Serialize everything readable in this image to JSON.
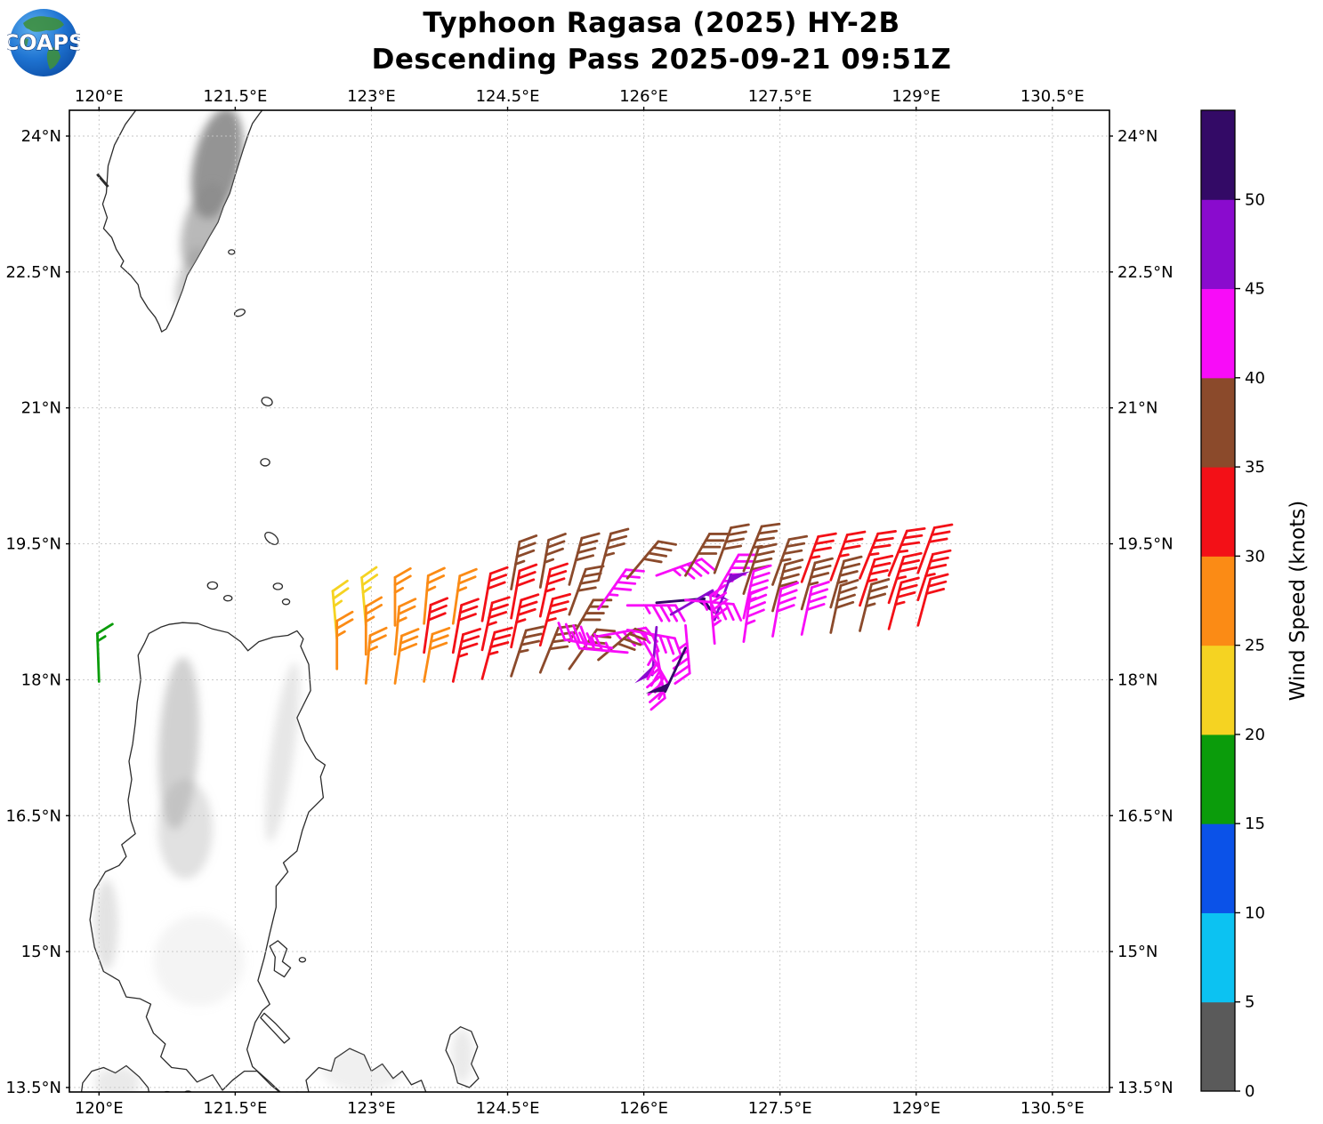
{
  "header": {
    "title_line1": "Typhoon Ragasa (2025) HY-2B",
    "title_line2": "Descending Pass 2025-09-21 09:51Z",
    "logo_text": "COAPS"
  },
  "chart_data": {
    "type": "wind_barb_map",
    "projection": {
      "lon_min": 119.67,
      "lon_max": 131.13,
      "lat_min": 13.45,
      "lat_max": 24.29
    },
    "grid": {
      "on": true,
      "style": "dashed",
      "color": "#c4c4c4"
    },
    "x_ticks": [
      {
        "value": 120.0,
        "label": "120°E"
      },
      {
        "value": 121.5,
        "label": "121.5°E"
      },
      {
        "value": 123.0,
        "label": "123°E"
      },
      {
        "value": 124.5,
        "label": "124.5°E"
      },
      {
        "value": 126.0,
        "label": "126°E"
      },
      {
        "value": 127.5,
        "label": "127.5°E"
      },
      {
        "value": 129.0,
        "label": "129°E"
      },
      {
        "value": 130.5,
        "label": "130.5°E"
      }
    ],
    "y_ticks": [
      {
        "value": 24.0,
        "label": "24°N"
      },
      {
        "value": 22.5,
        "label": "22.5°N"
      },
      {
        "value": 21.0,
        "label": "21°N"
      },
      {
        "value": 19.5,
        "label": "19.5°N"
      },
      {
        "value": 18.0,
        "label": "18°N"
      },
      {
        "value": 16.5,
        "label": "16.5°N"
      },
      {
        "value": 15.0,
        "label": "15°N"
      },
      {
        "value": 13.5,
        "label": "13.5°N"
      }
    ],
    "colorbar": {
      "label": "Wind Speed (knots)",
      "tick_values": [
        0,
        5,
        10,
        15,
        20,
        25,
        30,
        35,
        40,
        45,
        50
      ],
      "bands": [
        {
          "range": [
            0,
            5
          ],
          "color": "#5a5a5a"
        },
        {
          "range": [
            5,
            10
          ],
          "color": "#0cc2f2"
        },
        {
          "range": [
            10,
            15
          ],
          "color": "#0b52e8"
        },
        {
          "range": [
            15,
            20
          ],
          "color": "#0b9c0b"
        },
        {
          "range": [
            20,
            25
          ],
          "color": "#f5d322"
        },
        {
          "range": [
            25,
            30
          ],
          "color": "#fb8b15"
        },
        {
          "range": [
            30,
            35
          ],
          "color": "#f31017"
        },
        {
          "range": [
            35,
            40
          ],
          "color": "#8b4a2b"
        },
        {
          "range": [
            40,
            45
          ],
          "color": "#f80cf8"
        },
        {
          "range": [
            45,
            50
          ],
          "color": "#8a0bce"
        },
        {
          "range": [
            50,
            55
          ],
          "color": "#330a66"
        }
      ]
    },
    "barbs": [
      {
        "lon": 120.0,
        "lat": 17.98,
        "speed": 15,
        "dir": 358,
        "color": "#0b9c0b"
      },
      {
        "lon": 122.62,
        "lat": 18.45,
        "speed": 25,
        "dir": 355,
        "color": "#f5d322"
      },
      {
        "lon": 122.62,
        "lat": 18.12,
        "speed": 25,
        "dir": 0,
        "color": "#fb8b15"
      },
      {
        "lon": 122.94,
        "lat": 18.6,
        "speed": 25,
        "dir": 355,
        "color": "#f5d322"
      },
      {
        "lon": 122.94,
        "lat": 18.28,
        "speed": 25,
        "dir": 0,
        "color": "#fb8b15"
      },
      {
        "lon": 122.94,
        "lat": 17.96,
        "speed": 25,
        "dir": 5,
        "color": "#fb8b15"
      },
      {
        "lon": 123.26,
        "lat": 18.6,
        "speed": 25,
        "dir": 0,
        "color": "#fb8b15"
      },
      {
        "lon": 123.26,
        "lat": 18.28,
        "speed": 25,
        "dir": 5,
        "color": "#fb8b15"
      },
      {
        "lon": 123.26,
        "lat": 17.96,
        "speed": 30,
        "dir": 8,
        "color": "#fb8b15"
      },
      {
        "lon": 123.58,
        "lat": 18.62,
        "speed": 25,
        "dir": 5,
        "color": "#fb8b15"
      },
      {
        "lon": 123.58,
        "lat": 18.3,
        "speed": 30,
        "dir": 8,
        "color": "#f31017"
      },
      {
        "lon": 123.58,
        "lat": 17.98,
        "speed": 30,
        "dir": 10,
        "color": "#fb8b15"
      },
      {
        "lon": 123.9,
        "lat": 18.62,
        "speed": 25,
        "dir": 8,
        "color": "#fb8b15"
      },
      {
        "lon": 123.9,
        "lat": 18.3,
        "speed": 30,
        "dir": 10,
        "color": "#f31017"
      },
      {
        "lon": 123.9,
        "lat": 17.98,
        "speed": 35,
        "dir": 12,
        "color": "#f31017"
      },
      {
        "lon": 124.22,
        "lat": 18.65,
        "speed": 30,
        "dir": 10,
        "color": "#f31017"
      },
      {
        "lon": 124.22,
        "lat": 18.33,
        "speed": 35,
        "dir": 12,
        "color": "#f31017"
      },
      {
        "lon": 124.22,
        "lat": 18.01,
        "speed": 35,
        "dir": 15,
        "color": "#f31017"
      },
      {
        "lon": 124.54,
        "lat": 19.0,
        "speed": 35,
        "dir": 10,
        "color": "#8b4a2b"
      },
      {
        "lon": 124.54,
        "lat": 18.68,
        "speed": 30,
        "dir": 10,
        "color": "#f31017"
      },
      {
        "lon": 124.54,
        "lat": 18.36,
        "speed": 35,
        "dir": 12,
        "color": "#f31017"
      },
      {
        "lon": 124.54,
        "lat": 18.04,
        "speed": 35,
        "dir": 18,
        "color": "#8b4a2b"
      },
      {
        "lon": 124.86,
        "lat": 19.02,
        "speed": 35,
        "dir": 10,
        "color": "#8b4a2b"
      },
      {
        "lon": 124.86,
        "lat": 18.7,
        "speed": 35,
        "dir": 12,
        "color": "#f31017"
      },
      {
        "lon": 124.86,
        "lat": 18.38,
        "speed": 35,
        "dir": 15,
        "color": "#f31017"
      },
      {
        "lon": 124.86,
        "lat": 18.08,
        "speed": 40,
        "dir": 22,
        "color": "#8b4a2b"
      },
      {
        "lon": 125.18,
        "lat": 19.05,
        "speed": 40,
        "dir": 15,
        "color": "#8b4a2b"
      },
      {
        "lon": 125.18,
        "lat": 18.72,
        "speed": 40,
        "dir": 20,
        "color": "#8b4a2b"
      },
      {
        "lon": 125.18,
        "lat": 18.42,
        "speed": 40,
        "dir": 30,
        "color": "#8b4a2b"
      },
      {
        "lon": 125.18,
        "lat": 18.12,
        "speed": 40,
        "dir": 35,
        "color": "#8b4a2b"
      },
      {
        "lon": 125.5,
        "lat": 19.1,
        "speed": 35,
        "dir": 15,
        "color": "#8b4a2b"
      },
      {
        "lon": 125.5,
        "lat": 18.78,
        "speed": 45,
        "dir": 35,
        "color": "#f80cf8"
      },
      {
        "lon": 125.5,
        "lat": 18.48,
        "speed": 45,
        "dir": 80,
        "color": "#f80cf8"
      },
      {
        "lon": 125.5,
        "lat": 18.22,
        "speed": 40,
        "dir": 50,
        "color": "#8b4a2b"
      },
      {
        "lon": 125.82,
        "lat": 19.12,
        "speed": 40,
        "dir": 40,
        "color": "#8b4a2b"
      },
      {
        "lon": 125.82,
        "lat": 18.82,
        "speed": 45,
        "dir": 90,
        "color": "#f80cf8"
      },
      {
        "lon": 125.82,
        "lat": 18.55,
        "speed": 45,
        "dir": 100,
        "color": "#f80cf8"
      },
      {
        "lon": 125.82,
        "lat": 18.3,
        "speed": 45,
        "dir": 275,
        "color": "#f80cf8"
      },
      {
        "lon": 125.65,
        "lat": 18.35,
        "speed": 45,
        "dir": 280,
        "color": "#f80cf8"
      },
      {
        "lon": 126.14,
        "lat": 19.15,
        "speed": 45,
        "dir": 70,
        "color": "#f80cf8"
      },
      {
        "lon": 126.14,
        "lat": 18.85,
        "speed": 50,
        "dir": 85,
        "color": "#330a66"
      },
      {
        "lon": 126.14,
        "lat": 18.58,
        "speed": 50,
        "dir": 185,
        "color": "#8a0bce"
      },
      {
        "lon": 126.14,
        "lat": 18.32,
        "speed": 45,
        "dir": 170,
        "color": "#f80cf8"
      },
      {
        "lon": 126.0,
        "lat": 18.42,
        "speed": 45,
        "dir": 150,
        "color": "#f80cf8"
      },
      {
        "lon": 126.3,
        "lat": 18.72,
        "speed": 50,
        "dir": 60,
        "color": "#8a0bce"
      },
      {
        "lon": 126.46,
        "lat": 19.15,
        "speed": 40,
        "dir": 30,
        "color": "#8b4a2b"
      },
      {
        "lon": 126.46,
        "lat": 18.88,
        "speed": 45,
        "dir": 95,
        "color": "#f80cf8"
      },
      {
        "lon": 126.46,
        "lat": 18.6,
        "speed": 45,
        "dir": 175,
        "color": "#f80cf8"
      },
      {
        "lon": 126.46,
        "lat": 18.35,
        "speed": 50,
        "dir": 205,
        "color": "#330a66"
      },
      {
        "lon": 126.78,
        "lat": 19.18,
        "speed": 40,
        "dir": 20,
        "color": "#8b4a2b"
      },
      {
        "lon": 126.78,
        "lat": 18.92,
        "speed": 45,
        "dir": 30,
        "color": "#f80cf8"
      },
      {
        "lon": 126.78,
        "lat": 18.66,
        "speed": 50,
        "dir": 20,
        "color": "#8a0bce"
      },
      {
        "lon": 126.78,
        "lat": 18.4,
        "speed": 45,
        "dir": 355,
        "color": "#f80cf8"
      },
      {
        "lon": 127.1,
        "lat": 19.2,
        "speed": 35,
        "dir": 22,
        "color": "#8b4a2b"
      },
      {
        "lon": 127.1,
        "lat": 18.95,
        "speed": 40,
        "dir": 18,
        "color": "#8b4a2b"
      },
      {
        "lon": 127.1,
        "lat": 18.68,
        "speed": 45,
        "dir": 12,
        "color": "#f80cf8"
      },
      {
        "lon": 127.1,
        "lat": 18.42,
        "speed": 45,
        "dir": 8,
        "color": "#f80cf8"
      },
      {
        "lon": 127.42,
        "lat": 19.05,
        "speed": 35,
        "dir": 20,
        "color": "#8b4a2b"
      },
      {
        "lon": 127.42,
        "lat": 18.76,
        "speed": 40,
        "dir": 15,
        "color": "#8b4a2b"
      },
      {
        "lon": 127.42,
        "lat": 18.48,
        "speed": 40,
        "dir": 10,
        "color": "#f80cf8"
      },
      {
        "lon": 127.74,
        "lat": 19.08,
        "speed": 35,
        "dir": 20,
        "color": "#f31017"
      },
      {
        "lon": 127.74,
        "lat": 18.78,
        "speed": 35,
        "dir": 16,
        "color": "#8b4a2b"
      },
      {
        "lon": 127.74,
        "lat": 18.5,
        "speed": 40,
        "dir": 12,
        "color": "#f80cf8"
      },
      {
        "lon": 128.06,
        "lat": 19.1,
        "speed": 35,
        "dir": 20,
        "color": "#f31017"
      },
      {
        "lon": 128.06,
        "lat": 18.8,
        "speed": 35,
        "dir": 16,
        "color": "#8b4a2b"
      },
      {
        "lon": 128.06,
        "lat": 18.52,
        "speed": 40,
        "dir": 12,
        "color": "#8b4a2b"
      },
      {
        "lon": 128.38,
        "lat": 19.12,
        "speed": 35,
        "dir": 22,
        "color": "#f31017"
      },
      {
        "lon": 128.38,
        "lat": 18.82,
        "speed": 35,
        "dir": 18,
        "color": "#f31017"
      },
      {
        "lon": 128.38,
        "lat": 18.54,
        "speed": 35,
        "dir": 14,
        "color": "#8b4a2b"
      },
      {
        "lon": 128.7,
        "lat": 19.15,
        "speed": 35,
        "dir": 22,
        "color": "#f31017"
      },
      {
        "lon": 128.7,
        "lat": 18.85,
        "speed": 35,
        "dir": 18,
        "color": "#f31017"
      },
      {
        "lon": 128.7,
        "lat": 18.56,
        "speed": 35,
        "dir": 15,
        "color": "#f31017"
      },
      {
        "lon": 129.02,
        "lat": 19.18,
        "speed": 30,
        "dir": 20,
        "color": "#f31017"
      },
      {
        "lon": 129.02,
        "lat": 18.88,
        "speed": 35,
        "dir": 18,
        "color": "#f31017"
      },
      {
        "lon": 129.02,
        "lat": 18.6,
        "speed": 30,
        "dir": 15,
        "color": "#f31017"
      }
    ]
  }
}
